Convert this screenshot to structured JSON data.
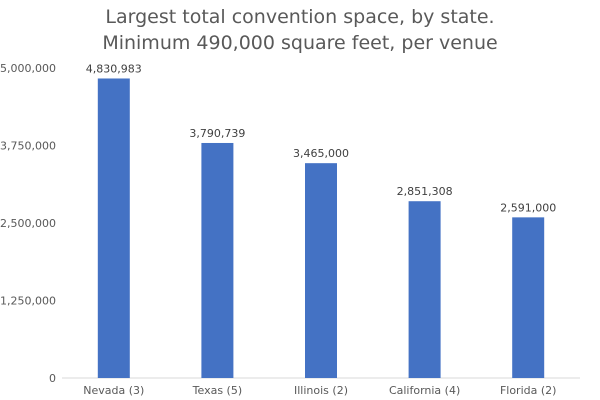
{
  "chart_data": {
    "type": "bar",
    "title_lines": [
      "Largest total convention space, by state.",
      "Minimum 490,000 square feet, per venue"
    ],
    "categories": [
      "Nevada (3)",
      "Texas (5)",
      "Illinois (2)",
      "California (4)",
      "Florida (2)"
    ],
    "values": [
      4830983,
      3790739,
      3465000,
      2851308,
      2591000
    ],
    "value_labels": [
      "4,830,983",
      "3,790,739",
      "3,465,000",
      "2,851,308",
      "2,591,000"
    ],
    "y_ticks": [
      0,
      1250000,
      2500000,
      3750000,
      5000000
    ],
    "y_tick_labels": [
      "0",
      "1,250,000",
      "2,500,000",
      "3,750,000",
      "5,000,000"
    ],
    "ylim": [
      0,
      5000000
    ],
    "xlabel": "",
    "ylabel": "",
    "grid": false,
    "legend": "none",
    "bar_color": "#4472c4"
  }
}
